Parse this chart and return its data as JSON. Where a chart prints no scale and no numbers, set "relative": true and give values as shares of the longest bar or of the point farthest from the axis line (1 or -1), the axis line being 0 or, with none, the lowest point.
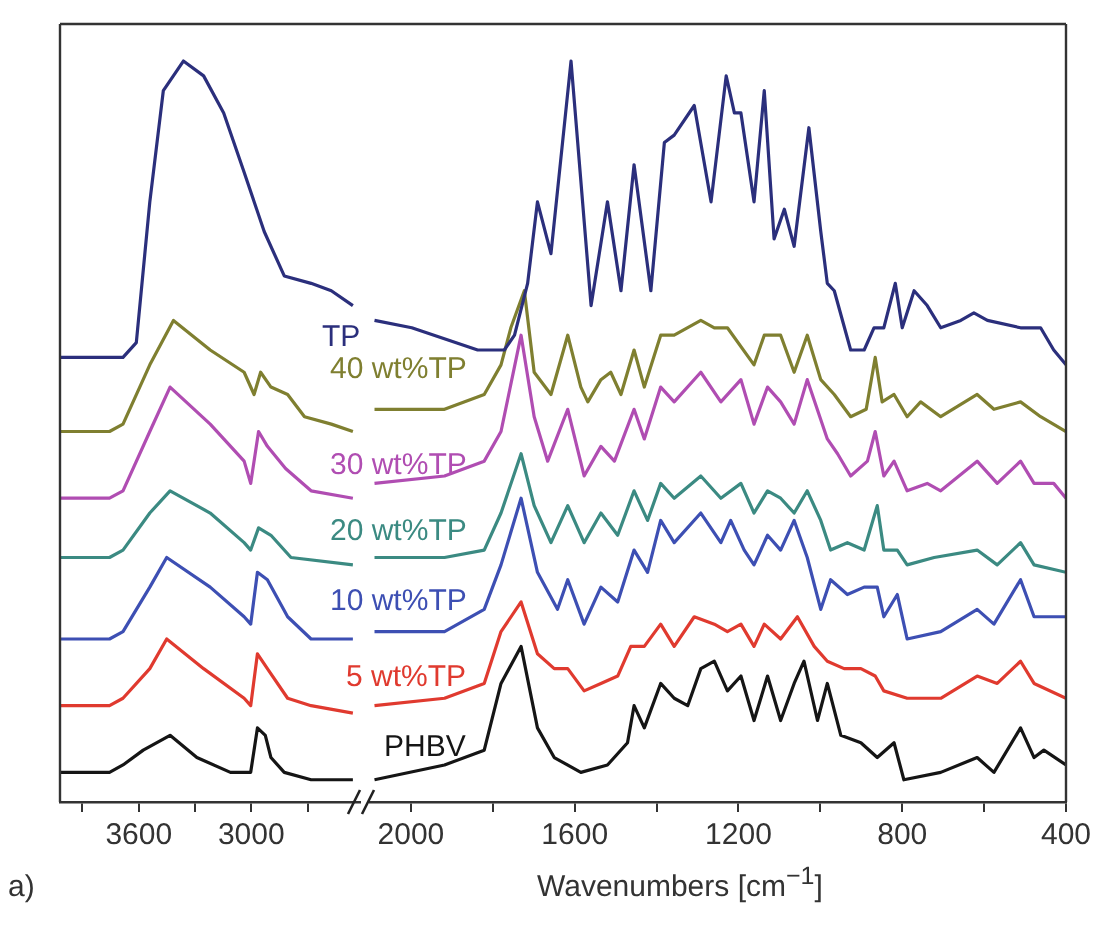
{
  "chart_data": [
    {
      "type": "line",
      "relative": true,
      "xlim": [
        4020,
        2420
      ],
      "xticks": [
        {
          "value": 3900,
          "label": null
        },
        3600,
        {
          "value": 3300,
          "label": null
        },
        3000,
        {
          "value": 2700,
          "label": null
        }
      ],
      "annotations": [
        "a)"
      ],
      "series": [
        {
          "name": "TP",
          "color": "#2b2f7c",
          "x": [
            4020,
            3756,
            3684,
            3613,
            3541,
            3469,
            3362,
            3254,
            3147,
            3038,
            2931,
            2824,
            2681,
            2573,
            2458
          ],
          "values": [
            0.6,
            0.6,
            0.6,
            0.62,
            0.81,
            0.96,
            1.0,
            0.98,
            0.93,
            0.85,
            0.77,
            0.71,
            0.7,
            0.69,
            0.67
          ]
        },
        {
          "name": "40 wt%TP",
          "color": "#7f7f30",
          "x": [
            4020,
            3756,
            3684,
            3541,
            3415,
            3219,
            3038,
            2985,
            2950,
            2895,
            2806,
            2716,
            2573,
            2458
          ],
          "values": [
            0.5,
            0.5,
            0.51,
            0.59,
            0.65,
            0.61,
            0.58,
            0.55,
            0.58,
            0.56,
            0.55,
            0.52,
            0.51,
            0.5
          ]
        },
        {
          "name": "30 wt%TP",
          "color": "#b04db2",
          "x": [
            4020,
            3756,
            3684,
            3541,
            3433,
            3219,
            3038,
            3003,
            2961,
            2914,
            2817,
            2681,
            2458
          ],
          "values": [
            0.41,
            0.41,
            0.42,
            0.5,
            0.56,
            0.51,
            0.46,
            0.43,
            0.5,
            0.48,
            0.45,
            0.42,
            0.41
          ]
        },
        {
          "name": "20 wt%TP",
          "color": "#3b8a82",
          "x": [
            4020,
            3756,
            3684,
            3541,
            3433,
            3219,
            3038,
            3003,
            2961,
            2895,
            2788,
            2458
          ],
          "values": [
            0.33,
            0.33,
            0.34,
            0.39,
            0.42,
            0.39,
            0.35,
            0.34,
            0.37,
            0.36,
            0.33,
            0.32
          ]
        },
        {
          "name": "10 wt%TP",
          "color": "#3d4fb3",
          "x": [
            4020,
            3756,
            3684,
            3541,
            3451,
            3219,
            3038,
            3003,
            2967,
            2914,
            2806,
            2681,
            2458
          ],
          "values": [
            0.22,
            0.22,
            0.23,
            0.29,
            0.33,
            0.29,
            0.25,
            0.24,
            0.31,
            0.3,
            0.25,
            0.22,
            0.22
          ]
        },
        {
          "name": "5 wt%TP",
          "color": "#e03a2f",
          "x": [
            4020,
            3756,
            3684,
            3541,
            3451,
            3254,
            3038,
            3003,
            2967,
            2914,
            2806,
            2681,
            2458
          ],
          "values": [
            0.13,
            0.13,
            0.14,
            0.18,
            0.22,
            0.18,
            0.14,
            0.13,
            0.2,
            0.18,
            0.14,
            0.13,
            0.12
          ]
        },
        {
          "name": "PHBV",
          "color": "#151515",
          "x": [
            4020,
            3756,
            3684,
            3576,
            3433,
            3290,
            3111,
            3003,
            2967,
            2925,
            2895,
            2824,
            2681,
            2458
          ],
          "values": [
            0.04,
            0.04,
            0.05,
            0.07,
            0.09,
            0.06,
            0.04,
            0.04,
            0.1,
            0.09,
            0.06,
            0.04,
            0.03,
            0.03
          ]
        }
      ]
    },
    {
      "type": "line",
      "relative": true,
      "xlabel": "Wavenumbers [cm$^{−1}$]",
      "xlim": [
        2100,
        400
      ],
      "xticks": [
        2000,
        {
          "value": 1800,
          "label": null
        },
        1600,
        {
          "value": 1400,
          "label": null
        },
        1200,
        {
          "value": 1000,
          "label": null
        },
        800,
        {
          "value": 600,
          "label": null
        },
        400
      ],
      "series": [
        {
          "color": "#2b2f7c",
          "x": [
            2089,
            1998,
            1837,
            1772,
            1747,
            1715,
            1691,
            1658,
            1609,
            1560,
            1520,
            1487,
            1455,
            1414,
            1381,
            1357,
            1308,
            1267,
            1230,
            1210,
            1194,
            1162,
            1137,
            1113,
            1088,
            1064,
            1028,
            999,
            983,
            966,
            926,
            893,
            869,
            845,
            817,
            800,
            771,
            739,
            706,
            657,
            625,
            592,
            511,
            462,
            430,
            400
          ],
          "values": [
            0.65,
            0.64,
            0.61,
            0.61,
            0.63,
            0.7,
            0.81,
            0.74,
            1.0,
            0.67,
            0.81,
            0.69,
            0.86,
            0.69,
            0.89,
            0.9,
            0.94,
            0.81,
            0.98,
            0.93,
            0.93,
            0.81,
            0.96,
            0.76,
            0.8,
            0.75,
            0.91,
            0.77,
            0.7,
            0.69,
            0.61,
            0.61,
            0.64,
            0.64,
            0.7,
            0.64,
            0.69,
            0.67,
            0.64,
            0.65,
            0.66,
            0.65,
            0.64,
            0.64,
            0.61,
            0.59
          ]
        },
        {
          "color": "#7f7f30",
          "x": [
            2089,
            1918,
            1821,
            1780,
            1756,
            1723,
            1699,
            1658,
            1617,
            1585,
            1568,
            1536,
            1512,
            1487,
            1455,
            1430,
            1390,
            1357,
            1292,
            1259,
            1227,
            1162,
            1137,
            1097,
            1064,
            1032,
            999,
            966,
            926,
            888,
            866,
            849,
            820,
            788,
            755,
            706,
            617,
            576,
            511,
            462,
            400
          ],
          "values": [
            0.53,
            0.53,
            0.55,
            0.59,
            0.64,
            0.69,
            0.58,
            0.55,
            0.63,
            0.56,
            0.54,
            0.57,
            0.58,
            0.55,
            0.61,
            0.56,
            0.63,
            0.63,
            0.65,
            0.64,
            0.64,
            0.59,
            0.63,
            0.63,
            0.58,
            0.63,
            0.57,
            0.55,
            0.52,
            0.53,
            0.6,
            0.54,
            0.55,
            0.52,
            0.54,
            0.52,
            0.55,
            0.53,
            0.54,
            0.52,
            0.5
          ]
        },
        {
          "color": "#b04db2",
          "x": [
            2089,
            1918,
            1821,
            1780,
            1731,
            1699,
            1666,
            1617,
            1577,
            1536,
            1503,
            1455,
            1430,
            1390,
            1357,
            1292,
            1243,
            1194,
            1162,
            1129,
            1097,
            1064,
            1032,
            983,
            958,
            926,
            885,
            866,
            845,
            820,
            788,
            739,
            706,
            617,
            568,
            511,
            478,
            430,
            400
          ],
          "values": [
            0.43,
            0.44,
            0.46,
            0.5,
            0.63,
            0.52,
            0.46,
            0.53,
            0.44,
            0.48,
            0.46,
            0.53,
            0.49,
            0.56,
            0.54,
            0.58,
            0.54,
            0.57,
            0.51,
            0.56,
            0.54,
            0.51,
            0.57,
            0.49,
            0.47,
            0.44,
            0.46,
            0.5,
            0.44,
            0.46,
            0.42,
            0.43,
            0.42,
            0.46,
            0.43,
            0.46,
            0.43,
            0.43,
            0.41
          ]
        },
        {
          "color": "#3b8a82",
          "x": [
            2089,
            1918,
            1821,
            1780,
            1731,
            1699,
            1658,
            1617,
            1577,
            1536,
            1495,
            1455,
            1422,
            1390,
            1357,
            1292,
            1243,
            1194,
            1162,
            1129,
            1097,
            1064,
            1032,
            999,
            975,
            934,
            893,
            861,
            845,
            812,
            788,
            722,
            617,
            568,
            511,
            478,
            400
          ],
          "values": [
            0.33,
            0.33,
            0.34,
            0.39,
            0.47,
            0.4,
            0.35,
            0.4,
            0.35,
            0.39,
            0.36,
            0.42,
            0.38,
            0.43,
            0.41,
            0.44,
            0.41,
            0.43,
            0.39,
            0.42,
            0.41,
            0.39,
            0.42,
            0.38,
            0.34,
            0.35,
            0.34,
            0.4,
            0.34,
            0.34,
            0.32,
            0.33,
            0.34,
            0.32,
            0.35,
            0.32,
            0.31
          ]
        },
        {
          "color": "#3d4fb3",
          "x": [
            2089,
            1918,
            1821,
            1780,
            1731,
            1691,
            1642,
            1617,
            1577,
            1536,
            1495,
            1455,
            1422,
            1390,
            1357,
            1292,
            1243,
            1219,
            1186,
            1162,
            1129,
            1097,
            1064,
            1032,
            999,
            975,
            934,
            893,
            861,
            845,
            812,
            788,
            706,
            617,
            576,
            511,
            478,
            400
          ],
          "values": [
            0.23,
            0.23,
            0.26,
            0.32,
            0.41,
            0.31,
            0.26,
            0.3,
            0.24,
            0.29,
            0.27,
            0.34,
            0.31,
            0.38,
            0.35,
            0.39,
            0.35,
            0.38,
            0.34,
            0.32,
            0.36,
            0.34,
            0.38,
            0.33,
            0.26,
            0.3,
            0.28,
            0.29,
            0.29,
            0.25,
            0.28,
            0.22,
            0.23,
            0.26,
            0.24,
            0.3,
            0.25,
            0.25
          ]
        },
        {
          "color": "#e03a2f",
          "x": [
            2089,
            1918,
            1821,
            1780,
            1731,
            1691,
            1650,
            1617,
            1577,
            1536,
            1495,
            1463,
            1430,
            1390,
            1357,
            1308,
            1259,
            1227,
            1194,
            1162,
            1137,
            1097,
            1056,
            1015,
            983,
            942,
            901,
            866,
            845,
            788,
            706,
            617,
            568,
            511,
            478,
            400
          ],
          "values": [
            0.13,
            0.14,
            0.16,
            0.23,
            0.27,
            0.2,
            0.18,
            0.18,
            0.15,
            0.16,
            0.17,
            0.21,
            0.21,
            0.24,
            0.21,
            0.25,
            0.24,
            0.23,
            0.24,
            0.21,
            0.24,
            0.22,
            0.25,
            0.21,
            0.19,
            0.18,
            0.18,
            0.17,
            0.15,
            0.14,
            0.14,
            0.17,
            0.16,
            0.19,
            0.16,
            0.14
          ]
        },
        {
          "color": "#151515",
          "x": [
            2089,
            1918,
            1821,
            1780,
            1731,
            1691,
            1650,
            1585,
            1520,
            1471,
            1455,
            1430,
            1390,
            1357,
            1324,
            1292,
            1259,
            1227,
            1194,
            1162,
            1129,
            1097,
            1064,
            1040,
            1007,
            983,
            950,
            901,
            861,
            820,
            796,
            706,
            617,
            576,
            511,
            478,
            454,
            400
          ],
          "values": [
            0.03,
            0.05,
            0.07,
            0.16,
            0.21,
            0.1,
            0.06,
            0.04,
            0.05,
            0.08,
            0.13,
            0.1,
            0.16,
            0.14,
            0.13,
            0.18,
            0.19,
            0.15,
            0.17,
            0.11,
            0.17,
            0.11,
            0.16,
            0.19,
            0.11,
            0.16,
            0.09,
            0.08,
            0.06,
            0.08,
            0.03,
            0.04,
            0.06,
            0.04,
            0.1,
            0.06,
            0.07,
            0.05
          ]
        }
      ]
    }
  ]
}
